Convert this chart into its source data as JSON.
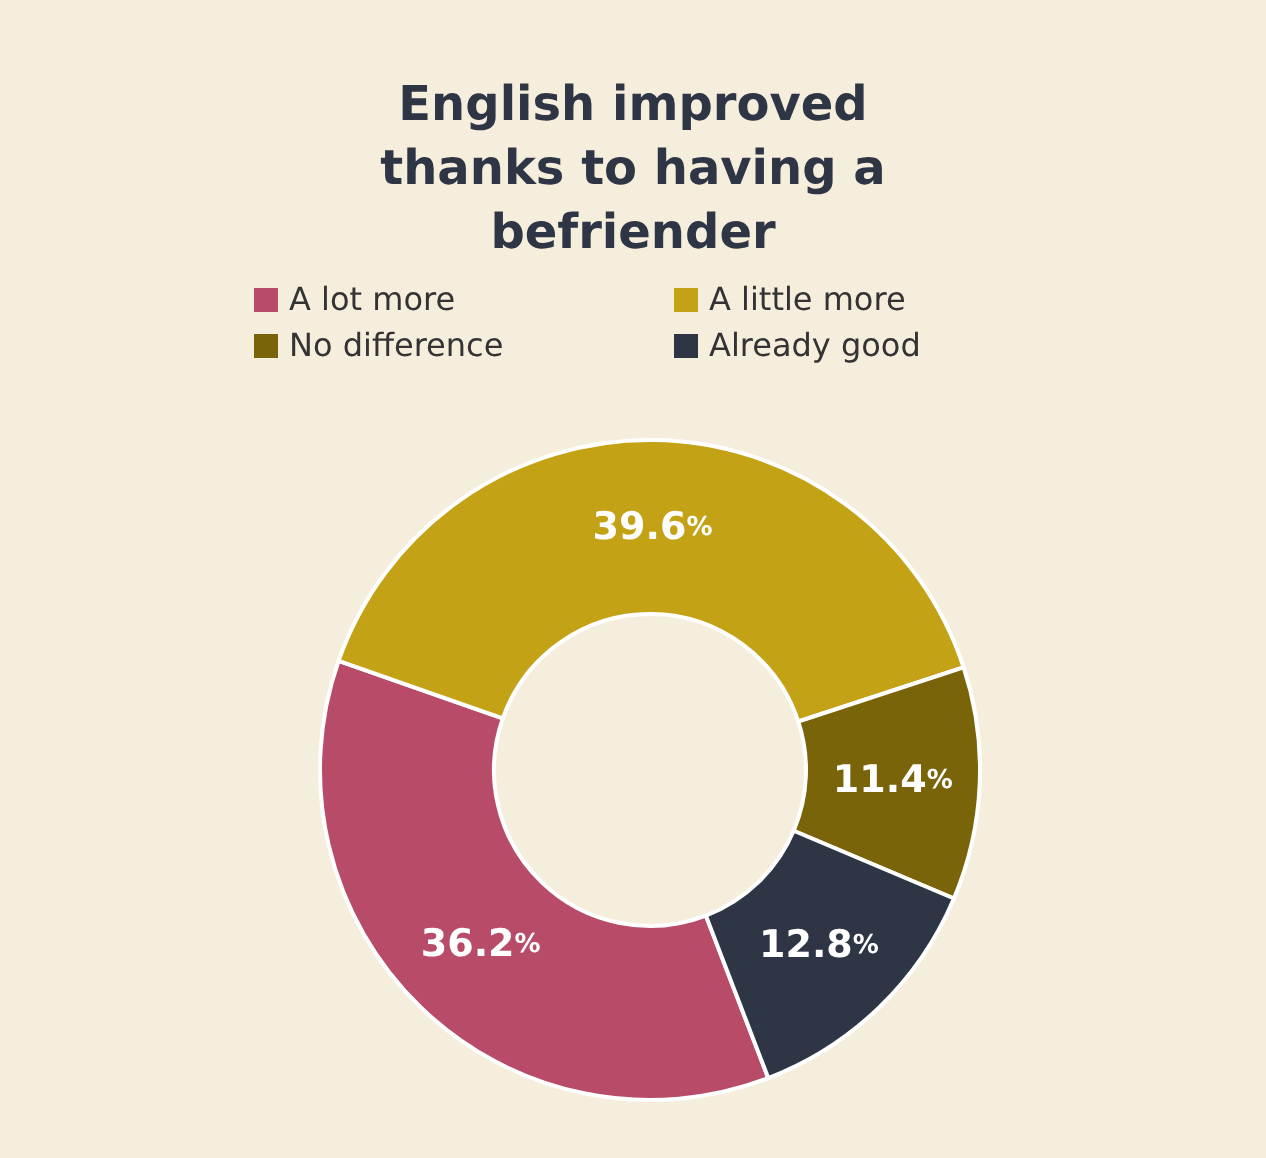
{
  "chart_data": {
    "type": "donut",
    "title": "English improved thanks to having a befriender",
    "categories": [
      "A lot more",
      "A little more",
      "No difference",
      "Already good"
    ],
    "values": [
      36.2,
      39.6,
      11.4,
      12.8
    ],
    "colors": [
      "#b84c68",
      "#c4a216",
      "#7a6409",
      "#2e3646"
    ],
    "value_labels": [
      "36.2%",
      "39.6%",
      "11.4%",
      "12.8%"
    ],
    "legend": "top"
  }
}
